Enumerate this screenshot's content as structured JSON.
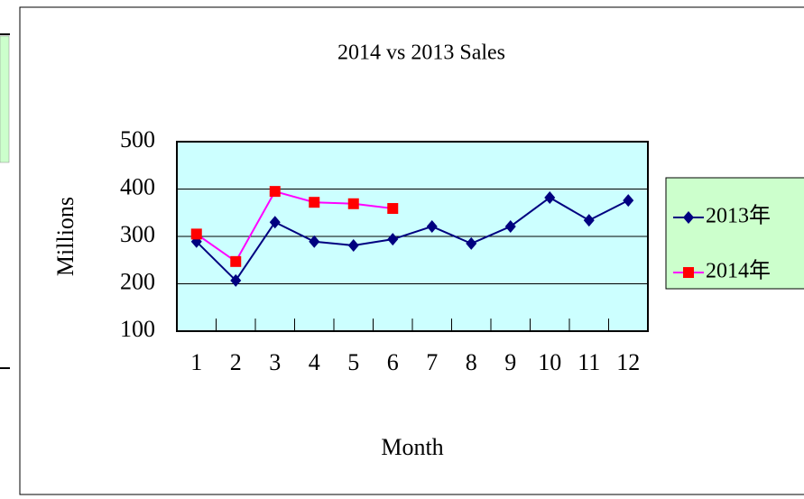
{
  "chart_data": {
    "type": "line",
    "title": "2014 vs 2013 Sales",
    "x_label": "Month",
    "y_label": "Millions",
    "categories": [
      "1",
      "2",
      "3",
      "4",
      "5",
      "6",
      "7",
      "8",
      "9",
      "10",
      "11",
      "12"
    ],
    "series": [
      {
        "name": "2013年",
        "color": "#000080",
        "marker": "diamond",
        "marker_color": "#000080",
        "values": [
          289,
          207,
          330,
          289,
          281,
          294,
          321,
          285,
          321,
          382,
          334,
          376
        ]
      },
      {
        "name": "2014年",
        "color": "#ff00ff",
        "marker": "square",
        "marker_color": "#ff0000",
        "values": [
          305,
          247,
          395,
          372,
          369,
          359,
          null,
          null,
          null,
          null,
          null,
          null
        ]
      }
    ],
    "ylim": [
      100,
      500
    ],
    "yticks": [
      100,
      200,
      300,
      400,
      500
    ],
    "grid": true,
    "legend": "right"
  }
}
